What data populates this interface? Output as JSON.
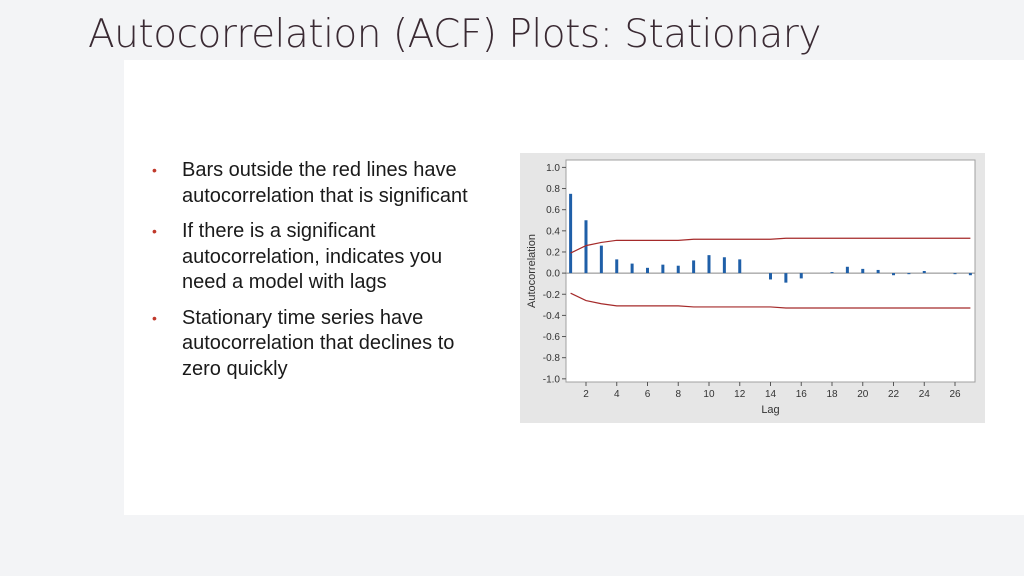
{
  "slide": {
    "title": "Autocorrelation (ACF) Plots: Stationary",
    "bullets": [
      "Bars outside the red lines have autocorrelation that is significant",
      "If there is a significant autocorrelation, indicates you need a model with lags",
      "Stationary time series have autocorrelation that declines to zero quickly"
    ],
    "bullet_color": "#c0392b"
  },
  "chart_data": {
    "type": "bar",
    "xlabel": "Lag",
    "ylabel": "Autocorrelation",
    "xlim": [
      1,
      27
    ],
    "ylim": [
      -1.0,
      1.0
    ],
    "xticks": [
      2,
      4,
      6,
      8,
      10,
      12,
      14,
      16,
      18,
      20,
      22,
      24,
      26
    ],
    "yticks": [
      1.0,
      0.8,
      0.6,
      0.4,
      0.2,
      0.0,
      -0.2,
      -0.4,
      -0.6,
      -0.8,
      -1.0
    ],
    "ytick_labels": [
      "1.0",
      "0.8",
      "0.6",
      "0.4",
      "0.2",
      "0.0",
      "-0.2",
      "-0.4",
      "-0.6",
      "-0.8",
      "-1.0"
    ],
    "grid": false,
    "bar_color": "#1f5fa8",
    "bound_color": "#a52a2a",
    "lags": [
      1,
      2,
      3,
      4,
      5,
      6,
      7,
      8,
      9,
      10,
      11,
      12,
      13,
      14,
      15,
      16,
      17,
      18,
      19,
      20,
      21,
      22,
      23,
      24,
      25,
      26,
      27
    ],
    "values": [
      0.75,
      0.5,
      0.26,
      0.13,
      0.09,
      0.05,
      0.08,
      0.07,
      0.12,
      0.17,
      0.15,
      0.13,
      0.0,
      -0.06,
      -0.09,
      -0.05,
      0.0,
      0.01,
      0.06,
      0.04,
      0.03,
      -0.02,
      -0.01,
      0.02,
      0.0,
      -0.01,
      -0.02
    ],
    "upper_limit": [
      0.19,
      0.26,
      0.29,
      0.31,
      0.31,
      0.31,
      0.31,
      0.31,
      0.32,
      0.32,
      0.32,
      0.32,
      0.32,
      0.32,
      0.33,
      0.33,
      0.33,
      0.33,
      0.33,
      0.33,
      0.33,
      0.33,
      0.33,
      0.33,
      0.33,
      0.33,
      0.33
    ],
    "lower_limit": [
      -0.19,
      -0.26,
      -0.29,
      -0.31,
      -0.31,
      -0.31,
      -0.31,
      -0.31,
      -0.32,
      -0.32,
      -0.32,
      -0.32,
      -0.32,
      -0.32,
      -0.33,
      -0.33,
      -0.33,
      -0.33,
      -0.33,
      -0.33,
      -0.33,
      -0.33,
      -0.33,
      -0.33,
      -0.33,
      -0.33,
      -0.33
    ]
  }
}
